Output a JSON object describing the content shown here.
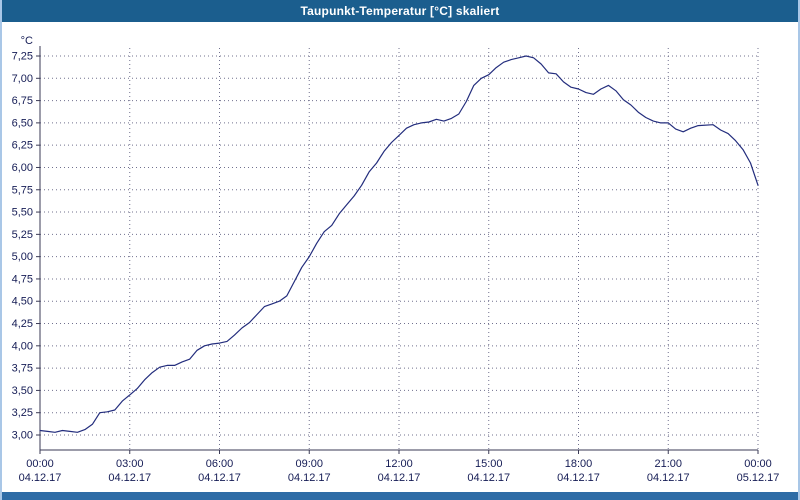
{
  "title": "Taupunkt-Temperatur [°C] skaliert",
  "colors": {
    "titlebar_bg": "#1b5e8e",
    "line": "#232d7d",
    "grid": "#70708e",
    "axis": "#3a3a55",
    "tick_text": "#151c55",
    "bottom_bar": "#2e6ca6",
    "frame": "#a9c7e7"
  },
  "chart_data": {
    "type": "line",
    "title": "Taupunkt-Temperatur [°C] skaliert",
    "xlabel": "",
    "ylabel": "°C",
    "ylim": [
      3.0,
      7.25
    ],
    "ytick_step": 0.25,
    "ytick_labels": [
      "7,25",
      "7,00",
      "6,75",
      "6,50",
      "6,25",
      "6,00",
      "5,75",
      "5,50",
      "5,25",
      "5,00",
      "4,75",
      "4,50",
      "4,25",
      "4,00",
      "3,75",
      "3,50",
      "3,25",
      "3,00"
    ],
    "xlim_hours": [
      0,
      24
    ],
    "xticks": [
      {
        "time": "00:00",
        "date": "04.12.17"
      },
      {
        "time": "03:00",
        "date": "04.12.17"
      },
      {
        "time": "06:00",
        "date": "04.12.17"
      },
      {
        "time": "09:00",
        "date": "04.12.17"
      },
      {
        "time": "12:00",
        "date": "04.12.17"
      },
      {
        "time": "15:00",
        "date": "04.12.17"
      },
      {
        "time": "18:00",
        "date": "04.12.17"
      },
      {
        "time": "21:00",
        "date": "04.12.17"
      },
      {
        "time": "00:00",
        "date": "05.12.17"
      }
    ],
    "grid": true,
    "legend": "none",
    "series": [
      {
        "name": "Taupunkt-Temperatur",
        "points": [
          [
            0,
            3.05
          ],
          [
            0.25,
            3.04
          ],
          [
            0.5,
            3.03
          ],
          [
            0.75,
            3.05
          ],
          [
            1,
            3.04
          ],
          [
            1.25,
            3.03
          ],
          [
            1.5,
            3.06
          ],
          [
            1.75,
            3.12
          ],
          [
            2,
            3.25
          ],
          [
            2.25,
            3.26
          ],
          [
            2.5,
            3.28
          ],
          [
            2.75,
            3.38
          ],
          [
            3,
            3.45
          ],
          [
            3.25,
            3.52
          ],
          [
            3.5,
            3.62
          ],
          [
            3.75,
            3.7
          ],
          [
            4,
            3.76
          ],
          [
            4.25,
            3.78
          ],
          [
            4.5,
            3.78
          ],
          [
            4.75,
            3.82
          ],
          [
            5,
            3.85
          ],
          [
            5.25,
            3.95
          ],
          [
            5.5,
            4.0
          ],
          [
            5.75,
            4.02
          ],
          [
            6,
            4.03
          ],
          [
            6.25,
            4.05
          ],
          [
            6.5,
            4.12
          ],
          [
            6.75,
            4.2
          ],
          [
            7,
            4.26
          ],
          [
            7.25,
            4.35
          ],
          [
            7.5,
            4.44
          ],
          [
            7.75,
            4.47
          ],
          [
            8,
            4.5
          ],
          [
            8.25,
            4.56
          ],
          [
            8.5,
            4.72
          ],
          [
            8.75,
            4.88
          ],
          [
            9,
            5.0
          ],
          [
            9.25,
            5.15
          ],
          [
            9.5,
            5.28
          ],
          [
            9.75,
            5.35
          ],
          [
            10,
            5.48
          ],
          [
            10.25,
            5.58
          ],
          [
            10.5,
            5.68
          ],
          [
            10.75,
            5.8
          ],
          [
            11,
            5.95
          ],
          [
            11.25,
            6.05
          ],
          [
            11.5,
            6.18
          ],
          [
            11.75,
            6.28
          ],
          [
            12,
            6.36
          ],
          [
            12.25,
            6.44
          ],
          [
            12.5,
            6.48
          ],
          [
            12.75,
            6.5
          ],
          [
            13,
            6.51
          ],
          [
            13.25,
            6.54
          ],
          [
            13.5,
            6.52
          ],
          [
            13.75,
            6.55
          ],
          [
            14,
            6.6
          ],
          [
            14.25,
            6.74
          ],
          [
            14.5,
            6.92
          ],
          [
            14.75,
            7.0
          ],
          [
            15,
            7.04
          ],
          [
            15.25,
            7.12
          ],
          [
            15.5,
            7.18
          ],
          [
            15.75,
            7.21
          ],
          [
            16,
            7.23
          ],
          [
            16.25,
            7.25
          ],
          [
            16.5,
            7.23
          ],
          [
            16.75,
            7.16
          ],
          [
            17,
            7.06
          ],
          [
            17.25,
            7.05
          ],
          [
            17.5,
            6.96
          ],
          [
            17.75,
            6.9
          ],
          [
            18,
            6.88
          ],
          [
            18.25,
            6.84
          ],
          [
            18.5,
            6.82
          ],
          [
            18.75,
            6.88
          ],
          [
            19,
            6.92
          ],
          [
            19.25,
            6.86
          ],
          [
            19.5,
            6.76
          ],
          [
            19.75,
            6.7
          ],
          [
            20,
            6.62
          ],
          [
            20.25,
            6.56
          ],
          [
            20.5,
            6.52
          ],
          [
            20.75,
            6.5
          ],
          [
            21,
            6.5
          ],
          [
            21.25,
            6.43
          ],
          [
            21.5,
            6.4
          ],
          [
            21.75,
            6.44
          ],
          [
            22,
            6.47
          ],
          [
            22.5,
            6.48
          ],
          [
            22.75,
            6.42
          ],
          [
            23,
            6.38
          ],
          [
            23.25,
            6.3
          ],
          [
            23.5,
            6.2
          ],
          [
            23.75,
            6.05
          ],
          [
            24,
            5.8
          ]
        ]
      }
    ]
  }
}
